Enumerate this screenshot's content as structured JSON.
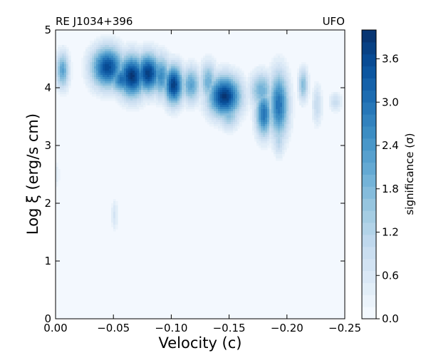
{
  "chart_data": {
    "type": "heatmap",
    "title_left": "RE J1034+396",
    "title_right": "UFO",
    "xlabel": "Velocity (c)",
    "ylabel": "Log ξ (erg/s cm)",
    "xlim": [
      0.0,
      -0.25
    ],
    "ylim": [
      0,
      5
    ],
    "x_ticks": [
      0.0,
      -0.05,
      -0.1,
      -0.15,
      -0.2,
      -0.25
    ],
    "x_tick_labels": [
      "0.00",
      "−0.05",
      "−0.10",
      "−0.15",
      "−0.20",
      "−0.25"
    ],
    "y_ticks": [
      0,
      1,
      2,
      3,
      4,
      5
    ],
    "y_tick_labels": [
      "0",
      "1",
      "2",
      "3",
      "4",
      "5"
    ],
    "colorbar": {
      "label": "significance (σ)",
      "range": [
        0.0,
        4.0
      ],
      "ticks": [
        0.0,
        0.6,
        1.2,
        1.8,
        2.4,
        3.0,
        3.6
      ],
      "tick_labels": [
        "0.0",
        "0.6",
        "1.2",
        "1.8",
        "2.4",
        "3.0",
        "3.6"
      ],
      "colors": [
        "#f7fbff",
        "#deebf7",
        "#c6dbef",
        "#9ecae1",
        "#6baed6",
        "#4292c6",
        "#2171b5",
        "#08519c",
        "#08306b"
      ]
    },
    "grid": false,
    "background_level": 0.1,
    "blobs": [
      {
        "v": -0.006,
        "logxi": 4.3,
        "sv": 0.004,
        "sx": 0.22,
        "amp": 2.2
      },
      {
        "v": -0.045,
        "logxi": 4.35,
        "sv": 0.01,
        "sx": 0.25,
        "amp": 3.6
      },
      {
        "v": -0.058,
        "logxi": 4.15,
        "sv": 0.008,
        "sx": 0.18,
        "amp": 3.1
      },
      {
        "v": -0.066,
        "logxi": 4.2,
        "sv": 0.009,
        "sx": 0.26,
        "amp": 3.9
      },
      {
        "v": -0.08,
        "logxi": 4.25,
        "sv": 0.008,
        "sx": 0.24,
        "amp": 3.8
      },
      {
        "v": -0.091,
        "logxi": 4.2,
        "sv": 0.006,
        "sx": 0.25,
        "amp": 2.6
      },
      {
        "v": -0.102,
        "logxi": 4.05,
        "sv": 0.006,
        "sx": 0.24,
        "amp": 3.8
      },
      {
        "v": -0.117,
        "logxi": 4.05,
        "sv": 0.006,
        "sx": 0.22,
        "amp": 2.2
      },
      {
        "v": -0.132,
        "logxi": 4.1,
        "sv": 0.005,
        "sx": 0.24,
        "amp": 2.0
      },
      {
        "v": -0.146,
        "logxi": 3.85,
        "sv": 0.01,
        "sx": 0.25,
        "amp": 3.9
      },
      {
        "v": -0.15,
        "logxi": 3.55,
        "sv": 0.006,
        "sx": 0.18,
        "amp": 1.8
      },
      {
        "v": -0.178,
        "logxi": 3.95,
        "sv": 0.007,
        "sx": 0.22,
        "amp": 2.0
      },
      {
        "v": -0.18,
        "logxi": 3.55,
        "sv": 0.005,
        "sx": 0.28,
        "amp": 3.0
      },
      {
        "v": -0.193,
        "logxi": 3.7,
        "sv": 0.006,
        "sx": 0.4,
        "amp": 3.0
      },
      {
        "v": -0.193,
        "logxi": 3.1,
        "sv": 0.004,
        "sx": 0.2,
        "amp": 1.2
      },
      {
        "v": -0.214,
        "logxi": 4.05,
        "sv": 0.003,
        "sx": 0.2,
        "amp": 1.8
      },
      {
        "v": -0.226,
        "logxi": 3.7,
        "sv": 0.003,
        "sx": 0.25,
        "amp": 1.0
      },
      {
        "v": -0.242,
        "logxi": 3.75,
        "sv": 0.004,
        "sx": 0.12,
        "amp": 0.9
      },
      {
        "v": -0.051,
        "logxi": 1.8,
        "sv": 0.002,
        "sx": 0.2,
        "amp": 0.7
      },
      {
        "v": -0.001,
        "logxi": 2.5,
        "sv": 0.002,
        "sx": 0.2,
        "amp": 0.4
      }
    ]
  }
}
